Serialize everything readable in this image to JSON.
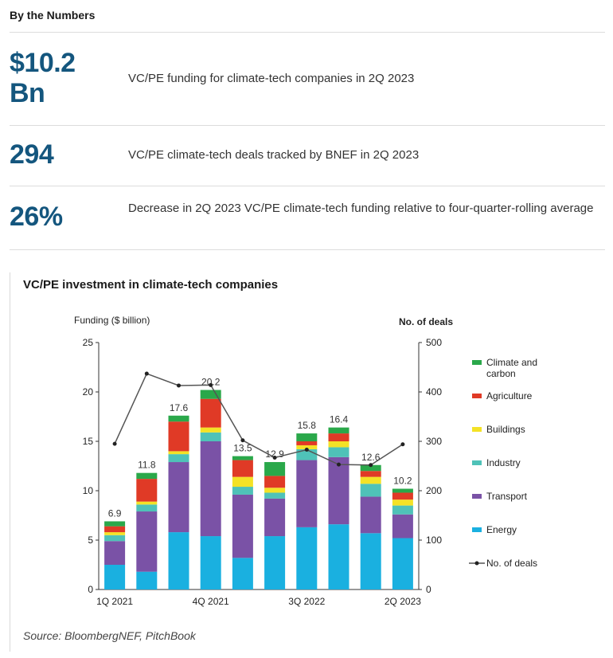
{
  "header": {
    "title": "By the Numbers"
  },
  "stats": [
    {
      "value_line1": "$10.2",
      "value_line2": "Bn",
      "description": "VC/PE funding for climate-tech companies in 2Q 2023"
    },
    {
      "value_line1": "294",
      "description": "VC/PE climate-tech deals tracked by BNEF in 2Q 2023"
    },
    {
      "value_line1": "26%",
      "description": "Decrease in 2Q 2023 VC/PE climate-tech funding relative to four-quarter-rolling average"
    }
  ],
  "chart_section": {
    "title": "VC/PE investment in climate-tech companies",
    "source": "Source: BloombergNEF, PitchBook"
  },
  "chart_data": {
    "type": "bar",
    "stacked": true,
    "left_axis_label": "Funding  ($ billion)",
    "right_axis_label": "No. of deals",
    "ylim": [
      0,
      25
    ],
    "yticks": [
      0,
      5,
      10,
      15,
      20,
      25
    ],
    "y2lim": [
      0,
      500
    ],
    "y2ticks": [
      0,
      100,
      200,
      300,
      400,
      500
    ],
    "categories": [
      "1Q 2021",
      "2Q 2021",
      "3Q 2021",
      "4Q 2021",
      "1Q 2022",
      "2Q 2022",
      "3Q 2022",
      "4Q 2022",
      "1Q 2023",
      "2Q 2023"
    ],
    "x_tick_labels": [
      "1Q 2021",
      "",
      "",
      "4Q 2021",
      "",
      "",
      "3Q 2022",
      "",
      "",
      "2Q 2023"
    ],
    "totals": [
      "6.9",
      "11.8",
      "17.6",
      "20.2",
      "13.5",
      "12.9",
      "15.8",
      "16.4",
      "12.6",
      "10.2"
    ],
    "series": [
      {
        "name": "Energy",
        "color": "#1ab0e0",
        "values": [
          2.5,
          1.8,
          5.8,
          5.4,
          3.2,
          5.4,
          6.3,
          6.6,
          5.7,
          5.2
        ]
      },
      {
        "name": "Transport",
        "color": "#7a52a6",
        "values": [
          2.4,
          6.1,
          7.1,
          9.6,
          6.4,
          3.8,
          6.8,
          6.8,
          3.7,
          2.4
        ]
      },
      {
        "name": "Industry",
        "color": "#4fc2b8",
        "values": [
          0.6,
          0.7,
          0.8,
          0.9,
          0.8,
          0.6,
          1.1,
          1.0,
          1.3,
          0.9
        ]
      },
      {
        "name": "Buildings",
        "color": "#f4e226",
        "values": [
          0.3,
          0.3,
          0.3,
          0.5,
          1.0,
          0.5,
          0.4,
          0.6,
          0.7,
          0.6
        ]
      },
      {
        "name": "Agriculture",
        "color": "#e03a26",
        "values": [
          0.6,
          2.3,
          3.0,
          2.9,
          1.7,
          1.2,
          0.4,
          0.8,
          0.6,
          0.7
        ]
      },
      {
        "name": "Climate and carbon",
        "color": "#2aa84a",
        "values": [
          0.5,
          0.6,
          0.6,
          0.9,
          0.4,
          1.4,
          0.8,
          0.6,
          0.6,
          0.4
        ]
      }
    ],
    "line": {
      "name": "No. of deals",
      "values": [
        295,
        437,
        413,
        414,
        302,
        267,
        283,
        253,
        252,
        294
      ]
    },
    "legend_order": [
      "Climate and carbon",
      "Agriculture",
      "Buildings",
      "Industry",
      "Transport",
      "Energy",
      "No. of deals"
    ],
    "legend_labels": {
      "Climate and carbon": [
        "Climate and",
        "carbon"
      ]
    },
    "legend_position": "right"
  }
}
